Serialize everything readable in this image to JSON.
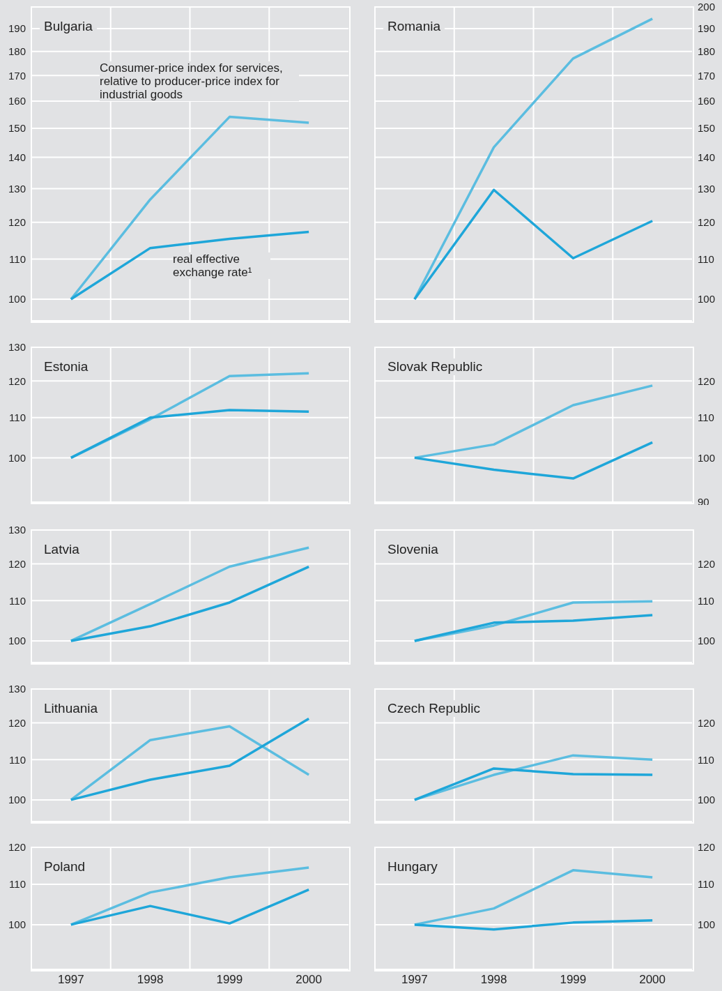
{
  "chart_data": [
    {
      "type": "line",
      "title": "Bulgaria",
      "categories": [
        "1997",
        "1998",
        "1999",
        "2000"
      ],
      "log": true,
      "grid": true,
      "marker": "none",
      "tick_labels": "y",
      "ylim": [
        95,
        200
      ],
      "yticks": [
        100,
        110,
        120,
        130,
        140,
        150,
        160,
        170,
        180,
        190
      ],
      "series": [
        {
          "name": "Consumer-price index for services, relative to producer-price index for industrial goods",
          "color": "#5bbde0",
          "values": [
            100,
            126.7,
            154.1,
            152
          ]
        },
        {
          "name": "real effective exchange rate¹",
          "color": "#1ea6d9",
          "values": [
            100,
            112.9,
            115.4,
            117.3
          ]
        }
      ]
    },
    {
      "type": "line",
      "title": "Romania",
      "categories": [
        "1997",
        "1998",
        "1999",
        "2000"
      ],
      "log": true,
      "grid": true,
      "marker": "none",
      "tick_labels": "y",
      "ylim": [
        95,
        200
      ],
      "yticks": [
        100,
        110,
        120,
        130,
        140,
        150,
        160,
        170,
        180,
        190,
        200
      ],
      "series": [
        {
          "color": "#5bbde0",
          "values": [
            100,
            143.4,
            177,
            194.5
          ]
        },
        {
          "color": "#1ea6d9",
          "values": [
            100,
            129.6,
            110.2,
            120.4
          ]
        }
      ]
    },
    {
      "type": "line",
      "title": "Estonia",
      "categories": [
        "1997",
        "1998",
        "1999",
        "2000"
      ],
      "log": true,
      "grid": true,
      "marker": "none",
      "tick_labels": "y",
      "ylim": [
        90,
        130
      ],
      "yticks": [
        100,
        110,
        120,
        130
      ],
      "series": [
        {
          "color": "#5bbde0",
          "values": [
            100,
            109.6,
            121.4,
            122.2
          ]
        },
        {
          "color": "#1ea6d9",
          "values": [
            100,
            110,
            112,
            111.6
          ]
        }
      ]
    },
    {
      "type": "line",
      "title": "Slovak Republic",
      "categories": [
        "1997",
        "1998",
        "1999",
        "2000"
      ],
      "log": true,
      "grid": true,
      "marker": "none",
      "tick_labels": "y",
      "ylim": [
        90,
        130
      ],
      "yticks": [
        90,
        100,
        110,
        120
      ],
      "series": [
        {
          "color": "#5bbde0",
          "values": [
            100,
            103.2,
            113.3,
            118.7
          ]
        },
        {
          "color": "#1ea6d9",
          "values": [
            100,
            97.2,
            95.2,
            103.7
          ]
        }
      ]
    },
    {
      "type": "line",
      "title": "Latvia",
      "categories": [
        "1997",
        "1998",
        "1999",
        "2000"
      ],
      "log": true,
      "grid": true,
      "marker": "none",
      "tick_labels": "y",
      "ylim": [
        95,
        130
      ],
      "yticks": [
        100,
        110,
        120,
        130
      ],
      "series": [
        {
          "color": "#5bbde0",
          "values": [
            100,
            109.1,
            119.2,
            124.7
          ]
        },
        {
          "color": "#1ea6d9",
          "values": [
            100,
            103.5,
            109.5,
            119.2
          ]
        }
      ]
    },
    {
      "type": "line",
      "title": "Slovenia",
      "categories": [
        "1997",
        "1998",
        "1999",
        "2000"
      ],
      "log": true,
      "grid": true,
      "marker": "none",
      "tick_labels": "y",
      "ylim": [
        95,
        130
      ],
      "yticks": [
        100,
        110,
        120
      ],
      "series": [
        {
          "color": "#5bbde0",
          "values": [
            100,
            103.7,
            109.5,
            109.8
          ]
        },
        {
          "color": "#1ea6d9",
          "values": [
            100,
            104.4,
            104.9,
            106.3
          ]
        }
      ]
    },
    {
      "type": "line",
      "title": "Lithuania",
      "categories": [
        "1997",
        "1998",
        "1999",
        "2000"
      ],
      "log": true,
      "grid": true,
      "marker": "none",
      "tick_labels": "y",
      "ylim": [
        95,
        130
      ],
      "yticks": [
        100,
        110,
        120,
        130
      ],
      "series": [
        {
          "color": "#5bbde0",
          "values": [
            100,
            115.2,
            119,
            106.1
          ]
        },
        {
          "color": "#1ea6d9",
          "values": [
            100,
            104.9,
            108.4,
            121.2
          ]
        }
      ]
    },
    {
      "type": "line",
      "title": "Czech Republic",
      "categories": [
        "1997",
        "1998",
        "1999",
        "2000"
      ],
      "log": true,
      "grid": true,
      "marker": "none",
      "tick_labels": "y",
      "ylim": [
        95,
        130
      ],
      "yticks": [
        100,
        110,
        120
      ],
      "series": [
        {
          "color": "#5bbde0",
          "values": [
            100,
            106.1,
            111.1,
            110
          ]
        },
        {
          "color": "#1ea6d9",
          "values": [
            100,
            107.7,
            106.3,
            106.1
          ]
        }
      ]
    },
    {
      "type": "line",
      "title": "Poland",
      "categories": [
        "1997",
        "1998",
        "1999",
        "2000"
      ],
      "log": true,
      "grid": true,
      "marker": "none",
      "ylim": [
        90,
        120
      ],
      "yticks": [
        100,
        110,
        120
      ],
      "series": [
        {
          "color": "#5bbde0",
          "values": [
            100,
            107.9,
            111.8,
            114.4
          ]
        },
        {
          "color": "#1ea6d9",
          "values": [
            100,
            104.5,
            100.3,
            108.6
          ]
        }
      ]
    },
    {
      "type": "line",
      "title": "Hungary",
      "categories": [
        "1997",
        "1998",
        "1999",
        "2000"
      ],
      "log": true,
      "grid": true,
      "marker": "none",
      "ylim": [
        90,
        120
      ],
      "yticks": [
        100,
        110,
        120
      ],
      "series": [
        {
          "color": "#5bbde0",
          "values": [
            100,
            103.9,
            113.7,
            111.8
          ]
        },
        {
          "color": "#1ea6d9",
          "values": [
            100,
            98.9,
            100.5,
            101
          ]
        }
      ]
    }
  ]
}
